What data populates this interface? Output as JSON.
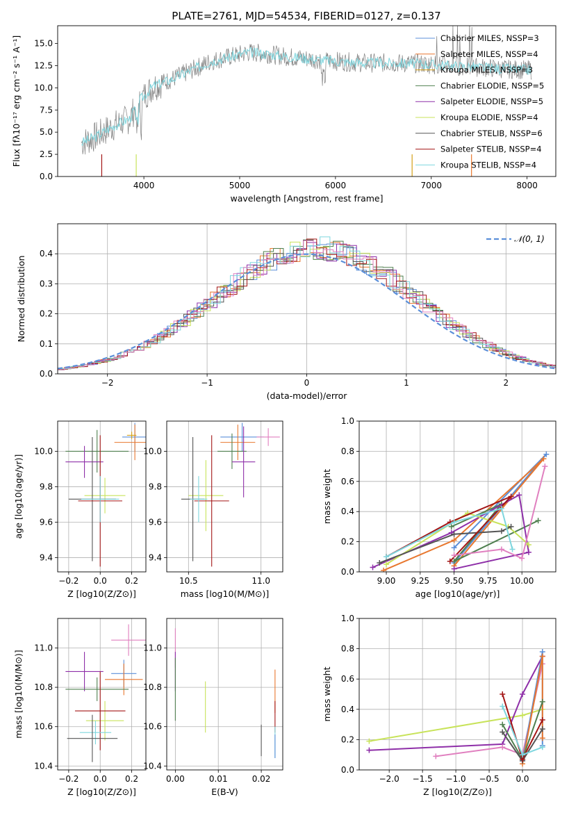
{
  "figure_title": "PLATE=2761, MJD=54534, FIBERID=0127, z=0.137",
  "colors": {
    "Chabrier MILES": "#5b8fd9",
    "Salpeter MILES": "#e8772e",
    "Kroupa MILES": "#d4a017",
    "Chabrier ELODIE": "#4f7f4f",
    "Salpeter ELODIE": "#8e2fa8",
    "Kroupa ELODIE": "#c8e35a",
    "Chabrier STELIB": "#555555",
    "Salpeter STELIB": "#a31515",
    "Kroupa STELIB": "#7ed6de",
    "Pink": "#e07fbf",
    "Gaussian": "#5b8fd9"
  },
  "chart_data": [
    {
      "id": "spectrum",
      "type": "line",
      "xlabel": "wavelength [Angstrom, rest frame]",
      "ylabel": "Flux [fλ10⁻¹⁷ erg cm⁻² s⁻¹ A⁻¹]",
      "xlim": [
        3100,
        8300
      ],
      "ylim": [
        0,
        17
      ],
      "xticks": [
        "4000",
        "5000",
        "6000",
        "7000",
        "8000"
      ],
      "yticks": [
        "0.0",
        "2.5",
        "5.0",
        "7.5",
        "10.0",
        "12.5",
        "15.0"
      ],
      "legend": [
        {
          "label": "Chabrier MILES, NSSP=3",
          "series": "Chabrier MILES"
        },
        {
          "label": "Salpeter MILES, NSSP=4",
          "series": "Salpeter MILES"
        },
        {
          "label": "Kroupa MILES, NSSP=3",
          "series": "Kroupa MILES"
        },
        {
          "label": "Chabrier ELODIE, NSSP=5",
          "series": "Chabrier ELODIE"
        },
        {
          "label": "Salpeter ELODIE, NSSP=5",
          "series": "Salpeter ELODIE"
        },
        {
          "label": "Kroupa ELODIE, NSSP=4",
          "series": "Kroupa ELODIE"
        },
        {
          "label": "Chabrier STELIB, NSSP=6",
          "series": "Chabrier STELIB"
        },
        {
          "label": "Salpeter STELIB, NSSP=4",
          "series": "Salpeter STELIB"
        },
        {
          "label": "Kroupa STELIB, NSSP=4",
          "series": "Kroupa STELIB"
        }
      ],
      "legend_position": "right",
      "continuum": {
        "x": [
          3350,
          3500,
          3700,
          3850,
          3950,
          4100,
          4300,
          4500,
          4700,
          4900,
          5100,
          5300,
          5500,
          5800,
          6000,
          6300,
          6600,
          6900,
          7200,
          7500,
          7800,
          8050
        ],
        "y": [
          3.8,
          4.5,
          5.8,
          6.5,
          8.5,
          10.2,
          11.0,
          12.0,
          13.0,
          13.5,
          14.0,
          13.8,
          13.5,
          13.2,
          13.0,
          12.8,
          12.8,
          12.7,
          12.5,
          12.3,
          12.1,
          12.0
        ]
      }
    },
    {
      "id": "residuals",
      "type": "histogram",
      "xlabel": "(data-model)/error",
      "ylabel": "Normed distribution",
      "xlim": [
        -2.5,
        2.5
      ],
      "ylim": [
        0,
        0.5
      ],
      "xticks": [
        "−2",
        "−1",
        "0",
        "1",
        "2"
      ],
      "yticks": [
        "0.0",
        "0.1",
        "0.2",
        "0.3",
        "0.4"
      ],
      "legend_label": "𝒩(0, 1)",
      "bin_width": 0.1,
      "grid": true
    },
    {
      "id": "age_vs_Z",
      "type": "errorbar",
      "xlabel": "Z [log10(Z/Z⊙)]",
      "ylabel": "age  [log10(age/yr)]",
      "xlim": [
        -0.27,
        0.29
      ],
      "ylim": [
        9.32,
        10.17
      ],
      "xticks": [
        "−0.2",
        "0.0",
        "0.2"
      ],
      "yticks": [
        "9.4",
        "9.6",
        "9.8",
        "10.0"
      ],
      "points": [
        {
          "c": "Chabrier MILES",
          "x": 0.22,
          "y": 10.08,
          "xerr": 0.08,
          "yerr": 0.08
        },
        {
          "c": "Salpeter MILES",
          "x": 0.22,
          "y": 10.05,
          "xerr": 0.13,
          "yerr": 0.1
        },
        {
          "c": "Kroupa MILES",
          "x": 0.2,
          "y": 10.09,
          "xerr": 0.03,
          "yerr": 0.02
        },
        {
          "c": "Chabrier ELODIE",
          "x": -0.02,
          "y": 10.0,
          "xerr": 0.2,
          "yerr": 0.12
        },
        {
          "c": "Salpeter ELODIE",
          "x": -0.1,
          "y": 9.94,
          "xerr": 0.12,
          "yerr": 0.09
        },
        {
          "c": "Kroupa ELODIE",
          "x": 0.03,
          "y": 9.75,
          "xerr": 0.13,
          "yerr": 0.1
        },
        {
          "c": "Chabrier STELIB",
          "x": -0.05,
          "y": 9.73,
          "xerr": 0.15,
          "yerr": 0.35
        },
        {
          "c": "Salpeter STELIB",
          "x": 0.0,
          "y": 9.72,
          "xerr": 0.14,
          "yerr": 0.37
        },
        {
          "c": "Kroupa STELIB",
          "x": 0.0,
          "y": 9.73,
          "xerr": 0.12,
          "yerr": 0.13
        }
      ]
    },
    {
      "id": "age_vs_mass",
      "type": "errorbar",
      "xlabel": "mass [log10(M/M⊙)]",
      "ylabel": "",
      "xlim": [
        10.35,
        11.15
      ],
      "ylim": [
        9.32,
        10.17
      ],
      "xticks": [
        "10.5",
        "11.0"
      ],
      "yticks": [
        "9.4",
        "9.6",
        "9.8",
        "10.0"
      ],
      "points": [
        {
          "c": "Chabrier MILES",
          "x": 10.87,
          "y": 10.08,
          "xerr": 0.15,
          "yerr": 0.08
        },
        {
          "c": "Salpeter MILES",
          "x": 10.84,
          "y": 10.05,
          "xerr": 0.12,
          "yerr": 0.1
        },
        {
          "c": "Pink",
          "x": 11.05,
          "y": 10.08,
          "xerr": 0.08,
          "yerr": 0.05
        },
        {
          "c": "Chabrier ELODIE",
          "x": 10.8,
          "y": 10.0,
          "xerr": 0.1,
          "yerr": 0.1
        },
        {
          "c": "Salpeter ELODIE",
          "x": 10.88,
          "y": 9.94,
          "xerr": 0.08,
          "yerr": 0.2
        },
        {
          "c": "Kroupa ELODIE",
          "x": 10.62,
          "y": 9.75,
          "xerr": 0.12,
          "yerr": 0.2
        },
        {
          "c": "Chabrier STELIB",
          "x": 10.53,
          "y": 9.73,
          "xerr": 0.08,
          "yerr": 0.35
        },
        {
          "c": "Salpeter STELIB",
          "x": 10.66,
          "y": 9.72,
          "xerr": 0.12,
          "yerr": 0.37
        },
        {
          "c": "Kroupa STELIB",
          "x": 10.57,
          "y": 9.73,
          "xerr": 0.06,
          "yerr": 0.13
        }
      ]
    },
    {
      "id": "weight_vs_age",
      "type": "line",
      "xlabel": "age  [log10(age/yr)]",
      "ylabel": "mass weight",
      "xlim": [
        8.8,
        10.25
      ],
      "ylim": [
        0,
        1.0
      ],
      "xticks": [
        "9.00",
        "9.25",
        "9.50",
        "9.75",
        "10.00"
      ],
      "yticks": [
        "0.0",
        "0.2",
        "0.4",
        "0.6",
        "0.8",
        "1.0"
      ],
      "series": [
        {
          "c": "Chabrier MILES",
          "x": [
            9.5,
            10.18,
            9.5
          ],
          "y": [
            0.16,
            0.78,
            0.06
          ]
        },
        {
          "c": "Salpeter MILES",
          "x": [
            8.98,
            9.5,
            10.16,
            9.5
          ],
          "y": [
            0.01,
            0.21,
            0.75,
            0.04
          ]
        },
        {
          "c": "Chabrier ELODIE",
          "x": [
            9.48,
            9.85,
            9.5,
            10.12
          ],
          "y": [
            0.3,
            0.45,
            0.07,
            0.34
          ]
        },
        {
          "c": "Salpeter ELODIE",
          "x": [
            8.9,
            9.48,
            9.98,
            10.05,
            9.5
          ],
          "y": [
            0.03,
            0.26,
            0.51,
            0.13,
            0.02
          ]
        },
        {
          "c": "Kroupa ELODIE",
          "x": [
            9.0,
            9.6,
            9.9,
            10.05
          ],
          "y": [
            0.05,
            0.39,
            0.3,
            0.18
          ]
        },
        {
          "c": "Chabrier STELIB",
          "x": [
            8.95,
            9.5,
            9.85,
            9.92
          ],
          "y": [
            0.06,
            0.25,
            0.27,
            0.3
          ]
        },
        {
          "c": "Salpeter STELIB",
          "x": [
            9.0,
            9.47,
            9.92,
            9.47
          ],
          "y": [
            0.1,
            0.33,
            0.5,
            0.07
          ]
        },
        {
          "c": "Kroupa STELIB",
          "x": [
            9.0,
            9.5,
            9.85,
            9.93
          ],
          "y": [
            0.1,
            0.33,
            0.42,
            0.15
          ]
        },
        {
          "c": "Pink",
          "x": [
            9.5,
            9.85,
            10.0,
            10.17
          ],
          "y": [
            0.11,
            0.15,
            0.09,
            0.7
          ]
        }
      ]
    },
    {
      "id": "mass_vs_Z",
      "type": "errorbar",
      "xlabel": "Z [log10(Z/Z⊙)]",
      "ylabel": "mass [log10(M/M⊙)]",
      "xlim": [
        -0.27,
        0.29
      ],
      "ylim": [
        10.38,
        11.15
      ],
      "xticks": [
        "−0.2",
        "0.0",
        "0.2"
      ],
      "yticks": [
        "10.4",
        "10.6",
        "10.8",
        "11.0"
      ],
      "points": [
        {
          "c": "Pink",
          "x": 0.18,
          "y": 11.04,
          "xerr": 0.11,
          "yerr": 0.08
        },
        {
          "c": "Salpeter ELODIE",
          "x": -0.1,
          "y": 10.88,
          "xerr": 0.12,
          "yerr": 0.1
        },
        {
          "c": "Chabrier MILES",
          "x": 0.15,
          "y": 10.87,
          "xerr": 0.08,
          "yerr": 0.07
        },
        {
          "c": "Salpeter MILES",
          "x": 0.15,
          "y": 10.84,
          "xerr": 0.12,
          "yerr": 0.08
        },
        {
          "c": "Chabrier ELODIE",
          "x": -0.02,
          "y": 10.79,
          "xerr": 0.2,
          "yerr": 0.06
        },
        {
          "c": "Kroupa ELODIE",
          "x": 0.03,
          "y": 10.63,
          "xerr": 0.12,
          "yerr": 0.1
        },
        {
          "c": "Salpeter STELIB",
          "x": 0.0,
          "y": 10.68,
          "xerr": 0.16,
          "yerr": 0.2
        },
        {
          "c": "Kroupa STELIB",
          "x": -0.03,
          "y": 10.57,
          "xerr": 0.1,
          "yerr": 0.06
        },
        {
          "c": "Chabrier STELIB",
          "x": -0.05,
          "y": 10.54,
          "xerr": 0.16,
          "yerr": 0.12
        }
      ]
    },
    {
      "id": "mass_vs_EBV",
      "type": "errorbar",
      "xlabel": "E(B-V)",
      "ylabel": "",
      "xlim": [
        -0.002,
        0.025
      ],
      "ylim": [
        10.38,
        11.15
      ],
      "xticks": [
        "0.00",
        "0.01",
        "0.02"
      ],
      "yticks": [
        "10.4",
        "10.6",
        "10.8",
        "11.0"
      ],
      "points": [
        {
          "c": "Pink",
          "x": 0.0,
          "y": 11.0,
          "xerr": 0,
          "yerr": 0.1
        },
        {
          "c": "Salpeter ELODIE",
          "x": 0.0,
          "y": 10.88,
          "xerr": 0,
          "yerr": 0.1
        },
        {
          "c": "Chabrier ELODIE",
          "x": 0.0,
          "y": 10.79,
          "xerr": 0,
          "yerr": 0.16
        },
        {
          "c": "Kroupa ELODIE",
          "x": 0.007,
          "y": 10.7,
          "xerr": 0,
          "yerr": 0.13
        },
        {
          "c": "Chabrier STELIB",
          "x": 0.02,
          "y": 10.53,
          "xerr": 0,
          "yerr": 0.08
        },
        {
          "c": "Salpeter MILES",
          "x": 0.0232,
          "y": 10.78,
          "xerr": 0,
          "yerr": 0.11
        },
        {
          "c": "Salpeter STELIB",
          "x": 0.0232,
          "y": 10.65,
          "xerr": 0,
          "yerr": 0.08
        },
        {
          "c": "Kroupa STELIB",
          "x": 0.0232,
          "y": 10.52,
          "xerr": 0,
          "yerr": 0.08
        },
        {
          "c": "Chabrier MILES",
          "x": 0.0232,
          "y": 10.5,
          "xerr": 0,
          "yerr": 0.06
        }
      ]
    },
    {
      "id": "weight_vs_Z",
      "type": "line",
      "xlabel": "Z [log10(Z/Z⊙)]",
      "ylabel": "mass weight",
      "xlim": [
        -2.45,
        0.5
      ],
      "ylim": [
        0,
        1.0
      ],
      "xticks": [
        "−2.0",
        "−1.5",
        "−1.0",
        "−0.5",
        "0.0"
      ],
      "yticks": [
        "0.0",
        "0.2",
        "0.4",
        "0.6",
        "0.8",
        "1.0"
      ],
      "series": [
        {
          "c": "Kroupa ELODIE",
          "x": [
            -2.3,
            0.0,
            0.3
          ],
          "y": [
            0.19,
            0.36,
            0.4
          ]
        },
        {
          "c": "Salpeter ELODIE",
          "x": [
            -2.3,
            -0.3,
            0.0,
            0.3
          ],
          "y": [
            0.13,
            0.17,
            0.5,
            0.75
          ]
        },
        {
          "c": "Pink",
          "x": [
            -1.3,
            -0.3,
            0.0,
            0.3
          ],
          "y": [
            0.09,
            0.15,
            0.1,
            0.7
          ]
        },
        {
          "c": "Chabrier MILES",
          "x": [
            0.0,
            0.3,
            0.3
          ],
          "y": [
            0.06,
            0.78,
            0.16
          ]
        },
        {
          "c": "Salpeter MILES",
          "x": [
            0.0,
            0.3,
            0.3
          ],
          "y": [
            0.04,
            0.75,
            0.21
          ]
        },
        {
          "c": "Chabrier ELODIE",
          "x": [
            -0.3,
            0.0,
            0.3
          ],
          "y": [
            0.3,
            0.07,
            0.45
          ]
        },
        {
          "c": "Chabrier STELIB",
          "x": [
            -0.3,
            0.0,
            0.3
          ],
          "y": [
            0.25,
            0.06,
            0.27
          ]
        },
        {
          "c": "Salpeter STELIB",
          "x": [
            -0.3,
            0.0,
            0.3
          ],
          "y": [
            0.5,
            0.07,
            0.33
          ]
        },
        {
          "c": "Kroupa STELIB",
          "x": [
            -0.3,
            0.0,
            0.3
          ],
          "y": [
            0.42,
            0.1,
            0.15
          ]
        }
      ]
    }
  ]
}
